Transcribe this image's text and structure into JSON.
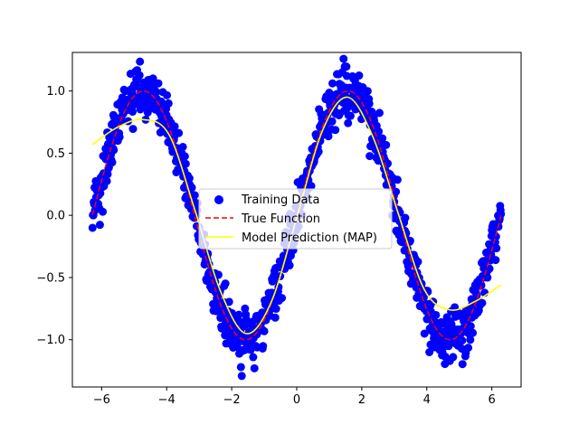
{
  "chart_data": {
    "type": "scatter",
    "title": "",
    "xlabel": "",
    "ylabel": "",
    "xlim": [
      -6.9,
      6.9
    ],
    "ylim": [
      -1.38,
      1.31
    ],
    "xticks": [
      -6,
      -4,
      -2,
      0,
      2,
      4,
      6
    ],
    "yticks": [
      -1.0,
      -0.5,
      0.0,
      0.5,
      1.0
    ],
    "xtick_labels": [
      "−6",
      "−4",
      "−2",
      "0",
      "2",
      "4",
      "6"
    ],
    "ytick_labels": [
      "−1.0",
      "−0.5",
      "0.0",
      "0.5",
      "1.0"
    ],
    "grid": false,
    "legend_position": "center",
    "series": [
      {
        "name": "Training Data",
        "kind": "scatter",
        "color": "#0000ff",
        "function": "sin(x) + noise",
        "noise_std": 0.1,
        "x_range": [
          -6.28,
          6.28
        ],
        "num_points": 1000
      },
      {
        "name": "True Function",
        "kind": "line",
        "style": "dashed",
        "color": "#ff0000",
        "x": [
          -6.28,
          -5.5,
          -4.71,
          -3.93,
          -3.14,
          -2.36,
          -1.57,
          -0.79,
          0,
          0.79,
          1.57,
          2.36,
          3.14,
          3.93,
          4.71,
          5.5,
          6.28
        ],
        "y": [
          0,
          0.71,
          1,
          0.71,
          0,
          -0.71,
          -1,
          -0.71,
          0,
          0.71,
          1,
          0.71,
          0,
          -0.71,
          -1,
          -0.71,
          0
        ]
      },
      {
        "name": "Model Prediction (MAP)",
        "kind": "line",
        "style": "solid",
        "color": "#ffff00",
        "x": [
          -6.28,
          -5.5,
          -4.71,
          -3.93,
          -3.14,
          -2.36,
          -1.57,
          -0.79,
          0,
          0.79,
          1.57,
          2.36,
          3.14,
          3.93,
          4.71,
          5.5,
          6.28
        ],
        "y": [
          0.57,
          0.71,
          0.77,
          0.65,
          0.05,
          -0.6,
          -0.95,
          -0.7,
          -0.02,
          0.68,
          0.95,
          0.62,
          0,
          -0.6,
          -0.76,
          -0.69,
          -0.56
        ]
      }
    ]
  }
}
